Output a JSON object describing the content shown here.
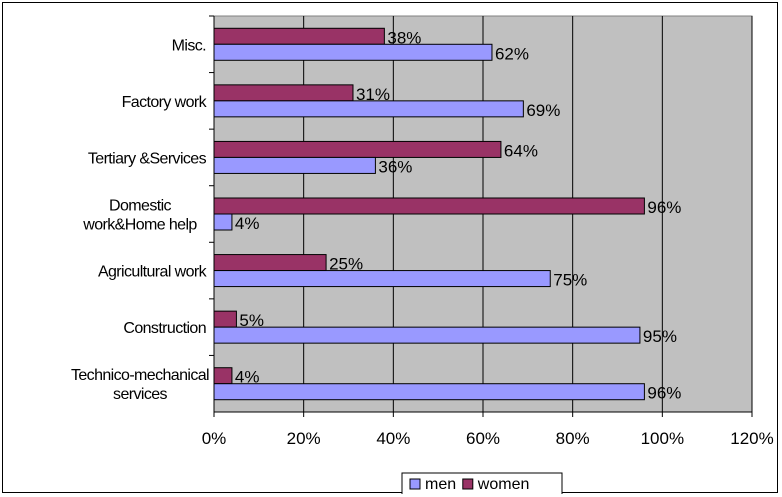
{
  "chart_data": {
    "type": "bar",
    "orientation": "horizontal",
    "categories": [
      [
        "Technico-mechanical",
        "services"
      ],
      [
        "Construction"
      ],
      [
        "Agricultural work"
      ],
      [
        "Domestic",
        "work&Home help"
      ],
      [
        "Tertiary &Services"
      ],
      [
        "Factory work"
      ],
      [
        "Misc."
      ]
    ],
    "series": [
      {
        "name": "men",
        "color": "#9999FF",
        "values": [
          96,
          95,
          75,
          4,
          36,
          69,
          62
        ],
        "labels": [
          "96%",
          "95%",
          "75%",
          "4%",
          "36%",
          "69%",
          "62%"
        ]
      },
      {
        "name": "women",
        "color": "#993366",
        "values": [
          4,
          5,
          25,
          96,
          64,
          31,
          38
        ],
        "labels": [
          "4%",
          "5%",
          "25%",
          "96%",
          "64%",
          "31%",
          "38%"
        ]
      }
    ],
    "xlim": [
      0,
      120
    ],
    "xticks": [
      0,
      20,
      40,
      60,
      80,
      100,
      120
    ],
    "xtick_labels": [
      "0%",
      "20%",
      "40%",
      "60%",
      "80%",
      "100%",
      "120%"
    ],
    "grid": true,
    "plot_background": "#C0C0C0",
    "legend": {
      "placement": "bottom",
      "items": [
        "men",
        "women"
      ]
    }
  }
}
